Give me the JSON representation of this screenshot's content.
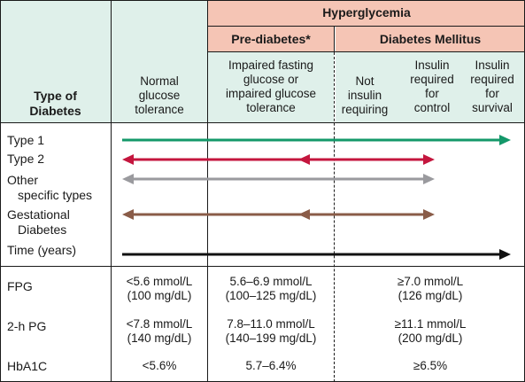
{
  "header": {
    "hyperglycemia": "Hyperglycemia",
    "prediabetes": "Pre-diabetes*",
    "diabetes_mellitus": "Diabetes Mellitus",
    "type_of": "Type of",
    "diabetes": "Diabetes",
    "normal": [
      "Normal",
      "glucose",
      "tolerance"
    ],
    "impaired": [
      "Impaired fasting",
      "glucose or",
      "impaired glucose",
      "tolerance"
    ],
    "not_insulin": [
      "Not",
      "insulin",
      "requiring"
    ],
    "insulin_control": [
      "Insulin",
      "required",
      "for",
      "control"
    ],
    "insulin_survival": [
      "Insulin",
      "required",
      "for",
      "survival"
    ]
  },
  "rows": {
    "type1": "Type 1",
    "type2": "Type 2",
    "other1": "Other",
    "other2": "specific types",
    "gest1": "Gestational",
    "gest2": "Diabetes",
    "time": "Time (years)"
  },
  "colors": {
    "header_green": "#dff0ea",
    "header_pink": "#f5c5b5",
    "type1_arrow": "#14986a",
    "type2_arrow": "#c4163e",
    "other_arrow": "#9a9a9e",
    "gestational_arrow": "#8a5c48",
    "time_arrow": "#111111"
  },
  "criteria": {
    "fpg": {
      "label": "FPG",
      "normal": [
        "<5.6 mmol/L",
        "(100 mg/dL)"
      ],
      "pre": [
        "5.6–6.9 mmol/L",
        "(100–125 mg/dL)"
      ],
      "dm": [
        "≥7.0 mmol/L",
        "(126 mg/dL)"
      ]
    },
    "pg2h": {
      "label": "2-h PG",
      "normal": [
        "<7.8 mmol/L",
        "(140 mg/dL)"
      ],
      "pre": [
        "7.8–11.0 mmol/L",
        "(140–199 mg/dL)"
      ],
      "dm": [
        "≥11.1 mmol/L",
        "(200 mg/dL)"
      ]
    },
    "hba1c": {
      "label": "HbA1C",
      "normal": "<5.6%",
      "pre": "5.7–6.4%",
      "dm": "≥6.5%"
    }
  }
}
